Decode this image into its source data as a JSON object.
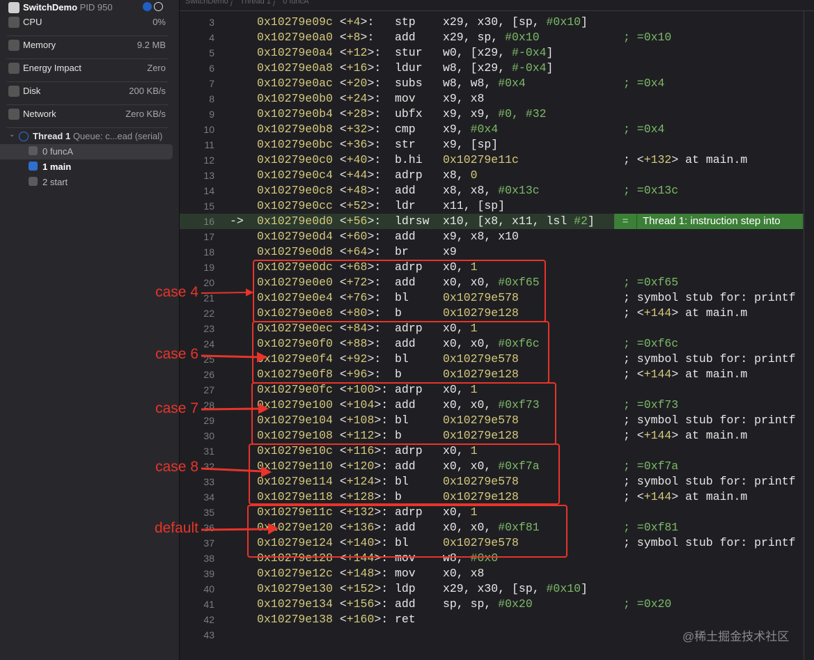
{
  "sidebar": {
    "process": {
      "name": "SwitchDemo",
      "pid": "PID 950"
    },
    "metrics": [
      {
        "label": "CPU",
        "value": "0%",
        "icon": "cpu-icon"
      },
      {
        "label": "Memory",
        "value": "9.2 MB",
        "icon": "memory-icon"
      },
      {
        "label": "Energy Impact",
        "value": "Zero",
        "icon": "energy-icon"
      },
      {
        "label": "Disk",
        "value": "200 KB/s",
        "icon": "disk-icon"
      },
      {
        "label": "Network",
        "value": "Zero KB/s",
        "icon": "network-icon"
      }
    ],
    "thread": {
      "name": "Thread 1",
      "queue": "Queue: c...ead (serial)"
    },
    "frames": [
      {
        "label": "0 funcA",
        "selected": true
      },
      {
        "label": "1 main",
        "selected": false
      },
      {
        "label": "2 start",
        "selected": false
      }
    ]
  },
  "breadcrumb": [
    "SwitchDemo",
    "Thread 1",
    "0 funcA"
  ],
  "current_line_arrow": "->",
  "badge": {
    "eq": "=",
    "text": "Thread 1: instruction step into"
  },
  "colors": {
    "address": "#d6c97d",
    "immediate": "#7dba68",
    "annotation": "#e8342a",
    "current_line": "#2b3a2d",
    "badge": "#3c7f37"
  },
  "lines": [
    {
      "n": "3",
      "addr": "0x10279e09c",
      "off": "+4",
      "mn": "stp",
      "ops": [
        [
          "x29, x30, [sp, ",
          "p"
        ],
        [
          "#0x10",
          "g"
        ],
        [
          "]",
          "p"
        ]
      ],
      "cm": []
    },
    {
      "n": "4",
      "addr": "0x10279e0a0",
      "off": "+8",
      "mn": "add",
      "ops": [
        [
          "x29, sp, ",
          "p"
        ],
        [
          "#0x10",
          "g"
        ]
      ],
      "cm": [
        [
          "; =0x10",
          "g"
        ]
      ]
    },
    {
      "n": "5",
      "addr": "0x10279e0a4",
      "off": "+12",
      "mn": "stur",
      "ops": [
        [
          "w0, [x29, ",
          "p"
        ],
        [
          "#-0x4",
          "g"
        ],
        [
          "]",
          "p"
        ]
      ],
      "cm": []
    },
    {
      "n": "6",
      "addr": "0x10279e0a8",
      "off": "+16",
      "mn": "ldur",
      "ops": [
        [
          "w8, [x29, ",
          "p"
        ],
        [
          "#-0x4",
          "g"
        ],
        [
          "]",
          "p"
        ]
      ],
      "cm": []
    },
    {
      "n": "7",
      "addr": "0x10279e0ac",
      "off": "+20",
      "mn": "subs",
      "ops": [
        [
          "w8, w8, ",
          "p"
        ],
        [
          "#0x4",
          "g"
        ]
      ],
      "cm": [
        [
          "; =0x4",
          "g"
        ]
      ]
    },
    {
      "n": "8",
      "addr": "0x10279e0b0",
      "off": "+24",
      "mn": "mov",
      "ops": [
        [
          "x9, x8",
          "p"
        ]
      ],
      "cm": []
    },
    {
      "n": "9",
      "addr": "0x10279e0b4",
      "off": "+28",
      "mn": "ubfx",
      "ops": [
        [
          "x9, x9, ",
          "p"
        ],
        [
          "#0, #32",
          "g"
        ]
      ],
      "cm": []
    },
    {
      "n": "10",
      "addr": "0x10279e0b8",
      "off": "+32",
      "mn": "cmp",
      "ops": [
        [
          "x9, ",
          "p"
        ],
        [
          "#0x4",
          "g"
        ]
      ],
      "cm": [
        [
          "; =0x4",
          "g"
        ]
      ]
    },
    {
      "n": "11",
      "addr": "0x10279e0bc",
      "off": "+36",
      "mn": "str",
      "ops": [
        [
          "x9, [sp]",
          "p"
        ]
      ],
      "cm": []
    },
    {
      "n": "12",
      "addr": "0x10279e0c0",
      "off": "+40",
      "mn": "b.hi",
      "ops": [
        [
          "0x10279e11c",
          "y"
        ]
      ],
      "cm": [
        [
          "; <",
          "p"
        ],
        [
          "+132",
          "y"
        ],
        [
          "> at main.m",
          "p"
        ]
      ]
    },
    {
      "n": "13",
      "addr": "0x10279e0c4",
      "off": "+44",
      "mn": "adrp",
      "ops": [
        [
          "x8, ",
          "p"
        ],
        [
          "0",
          "y"
        ]
      ],
      "cm": []
    },
    {
      "n": "14",
      "addr": "0x10279e0c8",
      "off": "+48",
      "mn": "add",
      "ops": [
        [
          "x8, x8, ",
          "p"
        ],
        [
          "#0x13c",
          "g"
        ]
      ],
      "cm": [
        [
          "; =0x13c",
          "g"
        ]
      ]
    },
    {
      "n": "15",
      "addr": "0x10279e0cc",
      "off": "+52",
      "mn": "ldr",
      "ops": [
        [
          "x11, [sp]",
          "p"
        ]
      ],
      "cm": []
    },
    {
      "n": "16",
      "addr": "0x10279e0d0",
      "off": "+56",
      "mn": "ldrsw",
      "ops": [
        [
          "x10, [x8, x11, lsl ",
          "p"
        ],
        [
          "#2",
          "g"
        ],
        [
          "]",
          "p"
        ]
      ],
      "cm": [],
      "current": true
    },
    {
      "n": "17",
      "addr": "0x10279e0d4",
      "off": "+60",
      "mn": "add",
      "ops": [
        [
          "x9, x8, x10",
          "p"
        ]
      ],
      "cm": []
    },
    {
      "n": "18",
      "addr": "0x10279e0d8",
      "off": "+64",
      "mn": "br",
      "ops": [
        [
          "x9",
          "p"
        ]
      ],
      "cm": []
    },
    {
      "n": "19",
      "addr": "0x10279e0dc",
      "off": "+68",
      "mn": "adrp",
      "ops": [
        [
          "x0, ",
          "p"
        ],
        [
          "1",
          "y"
        ]
      ],
      "cm": []
    },
    {
      "n": "20",
      "addr": "0x10279e0e0",
      "off": "+72",
      "mn": "add",
      "ops": [
        [
          "x0, x0, ",
          "p"
        ],
        [
          "#0xf65",
          "g"
        ]
      ],
      "cm": [
        [
          "; =0xf65",
          "g"
        ]
      ]
    },
    {
      "n": "21",
      "addr": "0x10279e0e4",
      "off": "+76",
      "mn": "bl",
      "ops": [
        [
          "0x10279e578",
          "y"
        ]
      ],
      "cm": [
        [
          "; symbol stub for: printf",
          "p"
        ]
      ]
    },
    {
      "n": "22",
      "addr": "0x10279e0e8",
      "off": "+80",
      "mn": "b",
      "ops": [
        [
          "0x10279e128",
          "y"
        ]
      ],
      "cm": [
        [
          "; <",
          "p"
        ],
        [
          "+144",
          "y"
        ],
        [
          "> at main.m",
          "p"
        ]
      ]
    },
    {
      "n": "23",
      "addr": "0x10279e0ec",
      "off": "+84",
      "mn": "adrp",
      "ops": [
        [
          "x0, ",
          "p"
        ],
        [
          "1",
          "y"
        ]
      ],
      "cm": []
    },
    {
      "n": "24",
      "addr": "0x10279e0f0",
      "off": "+88",
      "mn": "add",
      "ops": [
        [
          "x0, x0, ",
          "p"
        ],
        [
          "#0xf6c",
          "g"
        ]
      ],
      "cm": [
        [
          "; =0xf6c",
          "g"
        ]
      ]
    },
    {
      "n": "25",
      "addr": "0x10279e0f4",
      "off": "+92",
      "mn": "bl",
      "ops": [
        [
          "0x10279e578",
          "y"
        ]
      ],
      "cm": [
        [
          "; symbol stub for: printf",
          "p"
        ]
      ]
    },
    {
      "n": "26",
      "addr": "0x10279e0f8",
      "off": "+96",
      "mn": "b",
      "ops": [
        [
          "0x10279e128",
          "y"
        ]
      ],
      "cm": [
        [
          "; <",
          "p"
        ],
        [
          "+144",
          "y"
        ],
        [
          "> at main.m",
          "p"
        ]
      ]
    },
    {
      "n": "27",
      "addr": "0x10279e0fc",
      "off": "+100",
      "mn": "adrp",
      "ops": [
        [
          "x0, ",
          "p"
        ],
        [
          "1",
          "y"
        ]
      ],
      "cm": []
    },
    {
      "n": "28",
      "addr": "0x10279e100",
      "off": "+104",
      "mn": "add",
      "ops": [
        [
          "x0, x0, ",
          "p"
        ],
        [
          "#0xf73",
          "g"
        ]
      ],
      "cm": [
        [
          "; =0xf73",
          "g"
        ]
      ]
    },
    {
      "n": "29",
      "addr": "0x10279e104",
      "off": "+108",
      "mn": "bl",
      "ops": [
        [
          "0x10279e578",
          "y"
        ]
      ],
      "cm": [
        [
          "; symbol stub for: printf",
          "p"
        ]
      ]
    },
    {
      "n": "30",
      "addr": "0x10279e108",
      "off": "+112",
      "mn": "b",
      "ops": [
        [
          "0x10279e128",
          "y"
        ]
      ],
      "cm": [
        [
          "; <",
          "p"
        ],
        [
          "+144",
          "y"
        ],
        [
          "> at main.m",
          "p"
        ]
      ]
    },
    {
      "n": "31",
      "addr": "0x10279e10c",
      "off": "+116",
      "mn": "adrp",
      "ops": [
        [
          "x0, ",
          "p"
        ],
        [
          "1",
          "y"
        ]
      ],
      "cm": []
    },
    {
      "n": "32",
      "addr": "0x10279e110",
      "off": "+120",
      "mn": "add",
      "ops": [
        [
          "x0, x0, ",
          "p"
        ],
        [
          "#0xf7a",
          "g"
        ]
      ],
      "cm": [
        [
          "; =0xf7a",
          "g"
        ]
      ]
    },
    {
      "n": "33",
      "addr": "0x10279e114",
      "off": "+124",
      "mn": "bl",
      "ops": [
        [
          "0x10279e578",
          "y"
        ]
      ],
      "cm": [
        [
          "; symbol stub for: printf",
          "p"
        ]
      ]
    },
    {
      "n": "34",
      "addr": "0x10279e118",
      "off": "+128",
      "mn": "b",
      "ops": [
        [
          "0x10279e128",
          "y"
        ]
      ],
      "cm": [
        [
          "; <",
          "p"
        ],
        [
          "+144",
          "y"
        ],
        [
          "> at main.m",
          "p"
        ]
      ]
    },
    {
      "n": "35",
      "addr": "0x10279e11c",
      "off": "+132",
      "mn": "adrp",
      "ops": [
        [
          "x0, ",
          "p"
        ],
        [
          "1",
          "y"
        ]
      ],
      "cm": []
    },
    {
      "n": "36",
      "addr": "0x10279e120",
      "off": "+136",
      "mn": "add",
      "ops": [
        [
          "x0, x0, ",
          "p"
        ],
        [
          "#0xf81",
          "g"
        ]
      ],
      "cm": [
        [
          "; =0xf81",
          "g"
        ]
      ]
    },
    {
      "n": "37",
      "addr": "0x10279e124",
      "off": "+140",
      "mn": "bl",
      "ops": [
        [
          "0x10279e578",
          "y"
        ]
      ],
      "cm": [
        [
          "; symbol stub for: printf",
          "p"
        ]
      ]
    },
    {
      "n": "38",
      "addr": "0x10279e128",
      "off": "+144",
      "mn": "mov",
      "ops": [
        [
          "w8, ",
          "p"
        ],
        [
          "#0x0",
          "g"
        ]
      ],
      "cm": []
    },
    {
      "n": "39",
      "addr": "0x10279e12c",
      "off": "+148",
      "mn": "mov",
      "ops": [
        [
          "x0, x8",
          "p"
        ]
      ],
      "cm": []
    },
    {
      "n": "40",
      "addr": "0x10279e130",
      "off": "+152",
      "mn": "ldp",
      "ops": [
        [
          "x29, x30, [sp, ",
          "p"
        ],
        [
          "#0x10",
          "g"
        ],
        [
          "]",
          "p"
        ]
      ],
      "cm": []
    },
    {
      "n": "41",
      "addr": "0x10279e134",
      "off": "+156",
      "mn": "add",
      "ops": [
        [
          "sp, sp, ",
          "p"
        ],
        [
          "#0x20",
          "g"
        ]
      ],
      "cm": [
        [
          "; =0x20",
          "g"
        ]
      ]
    },
    {
      "n": "42",
      "addr": "0x10279e138",
      "off": "+160",
      "mn": "ret",
      "ops": [],
      "cm": []
    },
    {
      "n": "43",
      "addr": "",
      "off": "",
      "mn": "",
      "ops": [],
      "cm": []
    }
  ],
  "annotations": [
    "case 4",
    "case 6",
    "case 7",
    "case 8",
    "default"
  ],
  "watermark": "@稀土掘金技术社区"
}
